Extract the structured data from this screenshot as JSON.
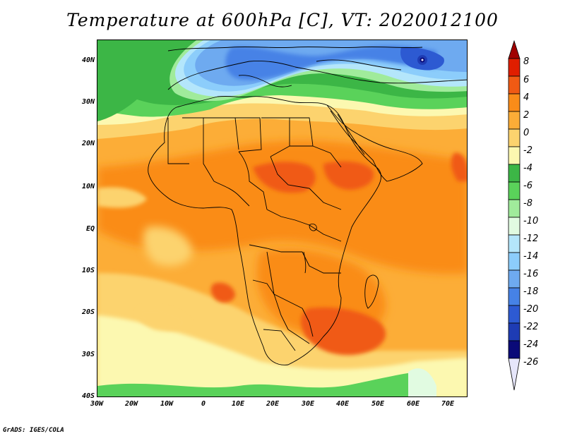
{
  "title": "Temperature at 600hPa [C], VT: 2020012100",
  "credit": "GrADS: IGES/COLA",
  "map": {
    "lon_range": [
      -30,
      77
    ],
    "lat_range": [
      -40,
      46
    ],
    "lat_ticks": [
      "40N",
      "30N",
      "20N",
      "10N",
      "EQ",
      "10S",
      "20S",
      "30S",
      "40S"
    ],
    "lat_values": [
      40,
      30,
      20,
      10,
      0,
      -10,
      -20,
      -30,
      -40
    ],
    "lon_ticks": [
      "30W",
      "20W",
      "10W",
      "0",
      "10E",
      "20E",
      "30E",
      "40E",
      "50E",
      "60E",
      "70E"
    ],
    "lon_values": [
      -30,
      -20,
      -10,
      0,
      10,
      20,
      30,
      40,
      50,
      60,
      70
    ],
    "features": [
      "coastlines",
      "country borders"
    ]
  },
  "colorbar": {
    "labels": [
      "8",
      "6",
      "4",
      "2",
      "0",
      "-2",
      "-4",
      "-6",
      "-8",
      "-10",
      "-12",
      "-14",
      "-16",
      "-18",
      "-20",
      "-22",
      "-24",
      "-26"
    ],
    "colors": [
      "#a00000",
      "#e01e00",
      "#f05a14",
      "#fa8c19",
      "#fcad37",
      "#fcd36e",
      "#fcf8b0",
      "#3cb646",
      "#5ad25a",
      "#a0eb9b",
      "#e1fbe1",
      "#b4e6fb",
      "#8ccdfb",
      "#6eaaf0",
      "#4682e6",
      "#2d5ad2",
      "#1e3cb4",
      "#0a0a78",
      "#e6e6fa"
    ]
  }
}
